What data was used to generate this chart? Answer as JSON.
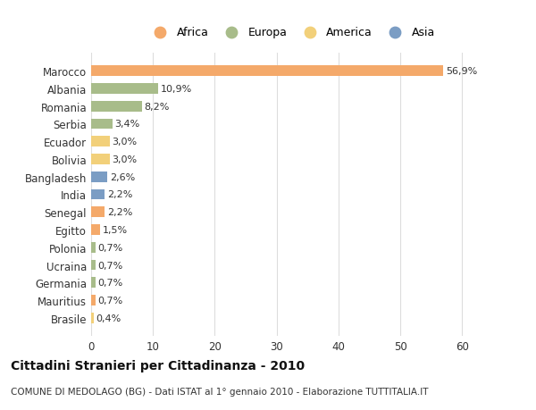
{
  "countries": [
    "Marocco",
    "Albania",
    "Romania",
    "Serbia",
    "Ecuador",
    "Bolivia",
    "Bangladesh",
    "India",
    "Senegal",
    "Egitto",
    "Polonia",
    "Ucraina",
    "Germania",
    "Mauritius",
    "Brasile"
  ],
  "values": [
    56.9,
    10.9,
    8.2,
    3.4,
    3.0,
    3.0,
    2.6,
    2.2,
    2.2,
    1.5,
    0.7,
    0.7,
    0.7,
    0.7,
    0.4
  ],
  "labels": [
    "56,9%",
    "10,9%",
    "8,2%",
    "3,4%",
    "3,0%",
    "3,0%",
    "2,6%",
    "2,2%",
    "2,2%",
    "1,5%",
    "0,7%",
    "0,7%",
    "0,7%",
    "0,7%",
    "0,4%"
  ],
  "continents": [
    "Africa",
    "Europa",
    "Europa",
    "Europa",
    "America",
    "America",
    "Asia",
    "Asia",
    "Africa",
    "Africa",
    "Europa",
    "Europa",
    "Europa",
    "Africa",
    "America"
  ],
  "colors": {
    "Africa": "#F4A96A",
    "Europa": "#A8BC8A",
    "America": "#F2D07A",
    "Asia": "#7B9DC4"
  },
  "legend_order": [
    "Africa",
    "Europa",
    "America",
    "Asia"
  ],
  "legend_colors": [
    "#F4A96A",
    "#A8BC8A",
    "#F2D07A",
    "#7B9DC4"
  ],
  "title": "Cittadini Stranieri per Cittadinanza - 2010",
  "subtitle": "COMUNE DI MEDOLAGO (BG) - Dati ISTAT al 1° gennaio 2010 - Elaborazione TUTTITALIA.IT",
  "xlim": [
    0,
    65
  ],
  "xticks": [
    0,
    10,
    20,
    30,
    40,
    50,
    60
  ],
  "bg_color": "#FFFFFF",
  "grid_color": "#DDDDDD"
}
